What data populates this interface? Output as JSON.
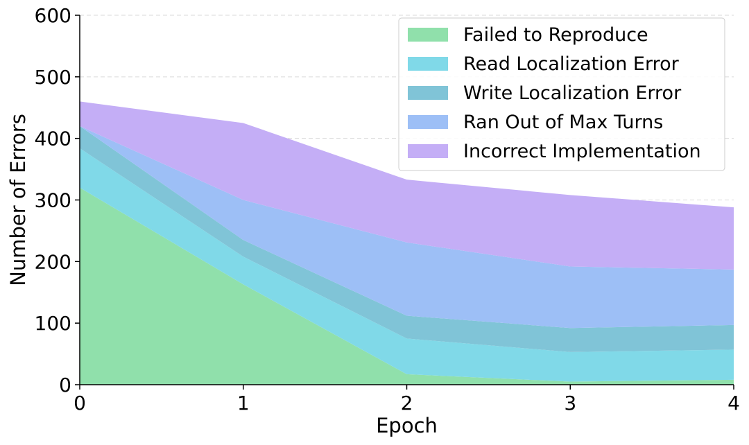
{
  "chart_data": {
    "type": "area",
    "stacked": true,
    "title": "",
    "xlabel": "Epoch",
    "ylabel": "Number of Errors",
    "x": [
      0,
      1,
      2,
      3,
      4
    ],
    "xticks": [
      "0",
      "1",
      "2",
      "3",
      "4"
    ],
    "yticks": [
      "0",
      "100",
      "200",
      "300",
      "400",
      "500",
      "600"
    ],
    "xlim": [
      0,
      4
    ],
    "ylim": [
      0,
      600
    ],
    "grid": "horizontal dashed",
    "legend_position": "top-right",
    "series": [
      {
        "name": "Failed to Reproduce",
        "color": "#90e0ab",
        "values": [
          320,
          163,
          17,
          5,
          8
        ]
      },
      {
        "name": "Read Localization Error",
        "color": "#80d9e8",
        "values": [
          64,
          45,
          58,
          48,
          49
        ]
      },
      {
        "name": "Write Localization Error",
        "color": "#80c4d7",
        "values": [
          36,
          27,
          37,
          39,
          40
        ]
      },
      {
        "name": "Ran Out of Max Turns",
        "color": "#9dbff6",
        "values": [
          0,
          65,
          119,
          100,
          90
        ]
      },
      {
        "name": "Incorrect Implementation",
        "color": "#c4aef6",
        "values": [
          40,
          125,
          102,
          116,
          101
        ]
      }
    ]
  }
}
